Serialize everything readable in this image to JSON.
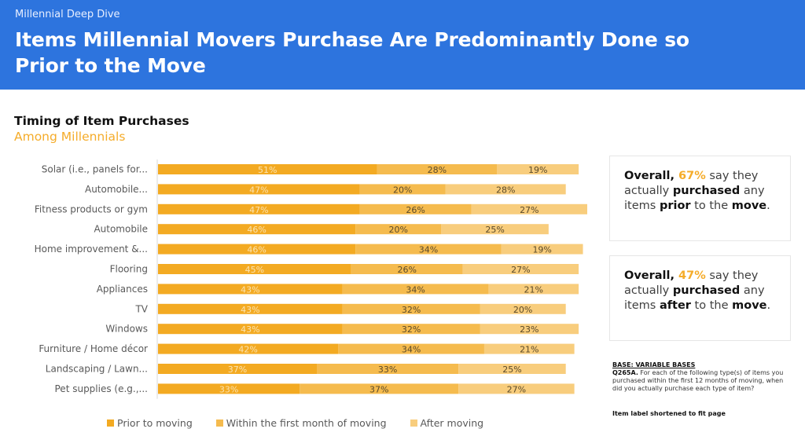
{
  "header": {
    "kicker": "Millennial Deep Dive",
    "title": "Items Millennial Movers Purchase Are Predominantly Done so Prior to the Move",
    "background_color": "#2d74de"
  },
  "chart_heading": {
    "title": "Timing of Item Purchases",
    "subtitle": "Among Millennials"
  },
  "callouts": [
    {
      "lead": "Overall, ",
      "pct": "67%",
      "t1": " say they actually ",
      "b1": "purchased",
      "t2": " any items ",
      "b2": "prior",
      "t3": " to the ",
      "b3": "move",
      "t4": "."
    },
    {
      "lead": "Overall, ",
      "pct": "47%",
      "t1": " say they actually ",
      "b1": "purchased",
      "t2": " any items ",
      "b2": "after",
      "t3": " to the ",
      "b3": "move",
      "t4": "."
    }
  ],
  "notes": {
    "base": "BASE: VARIABLE BASES",
    "question_id": "Q265A.",
    "question_text": " For each of the following type(s) of items you purchased within the first 12 months of moving, when did you actually purchase each type of item?",
    "shortened": "Item label shortened to fit page"
  },
  "chart_data": {
    "type": "bar",
    "orientation": "horizontal",
    "stacked": "100%",
    "title": "Timing of Item Purchases",
    "subtitle": "Among Millennials",
    "xlabel": "",
    "ylabel": "",
    "xlim": [
      0,
      100
    ],
    "grid": false,
    "legend_position": "bottom",
    "categories": [
      "Solar (i.e., panels for...",
      "Automobile...",
      "Fitness products or gym",
      "Automobile",
      "Home improvement &...",
      "Flooring",
      "Appliances",
      "TV",
      "Windows",
      "Furniture / Home décor",
      "Landscaping / Lawn...",
      "Pet supplies (e.g.,..."
    ],
    "series": [
      {
        "name": "Prior to moving",
        "color": "#f3aa22",
        "label_color": "#fbe3b0",
        "values": [
          51,
          47,
          47,
          46,
          46,
          45,
          43,
          43,
          43,
          42,
          37,
          33
        ]
      },
      {
        "name": "Within the first month of moving",
        "color": "#f5bb4e",
        "label_color": "#5a4a2a",
        "values": [
          28,
          20,
          26,
          20,
          34,
          26,
          34,
          32,
          32,
          34,
          33,
          37
        ]
      },
      {
        "name": "After moving",
        "color": "#f8cd7d",
        "label_color": "#5a4a2a",
        "values": [
          19,
          28,
          27,
          25,
          19,
          27,
          21,
          20,
          23,
          21,
          25,
          27
        ]
      }
    ]
  }
}
